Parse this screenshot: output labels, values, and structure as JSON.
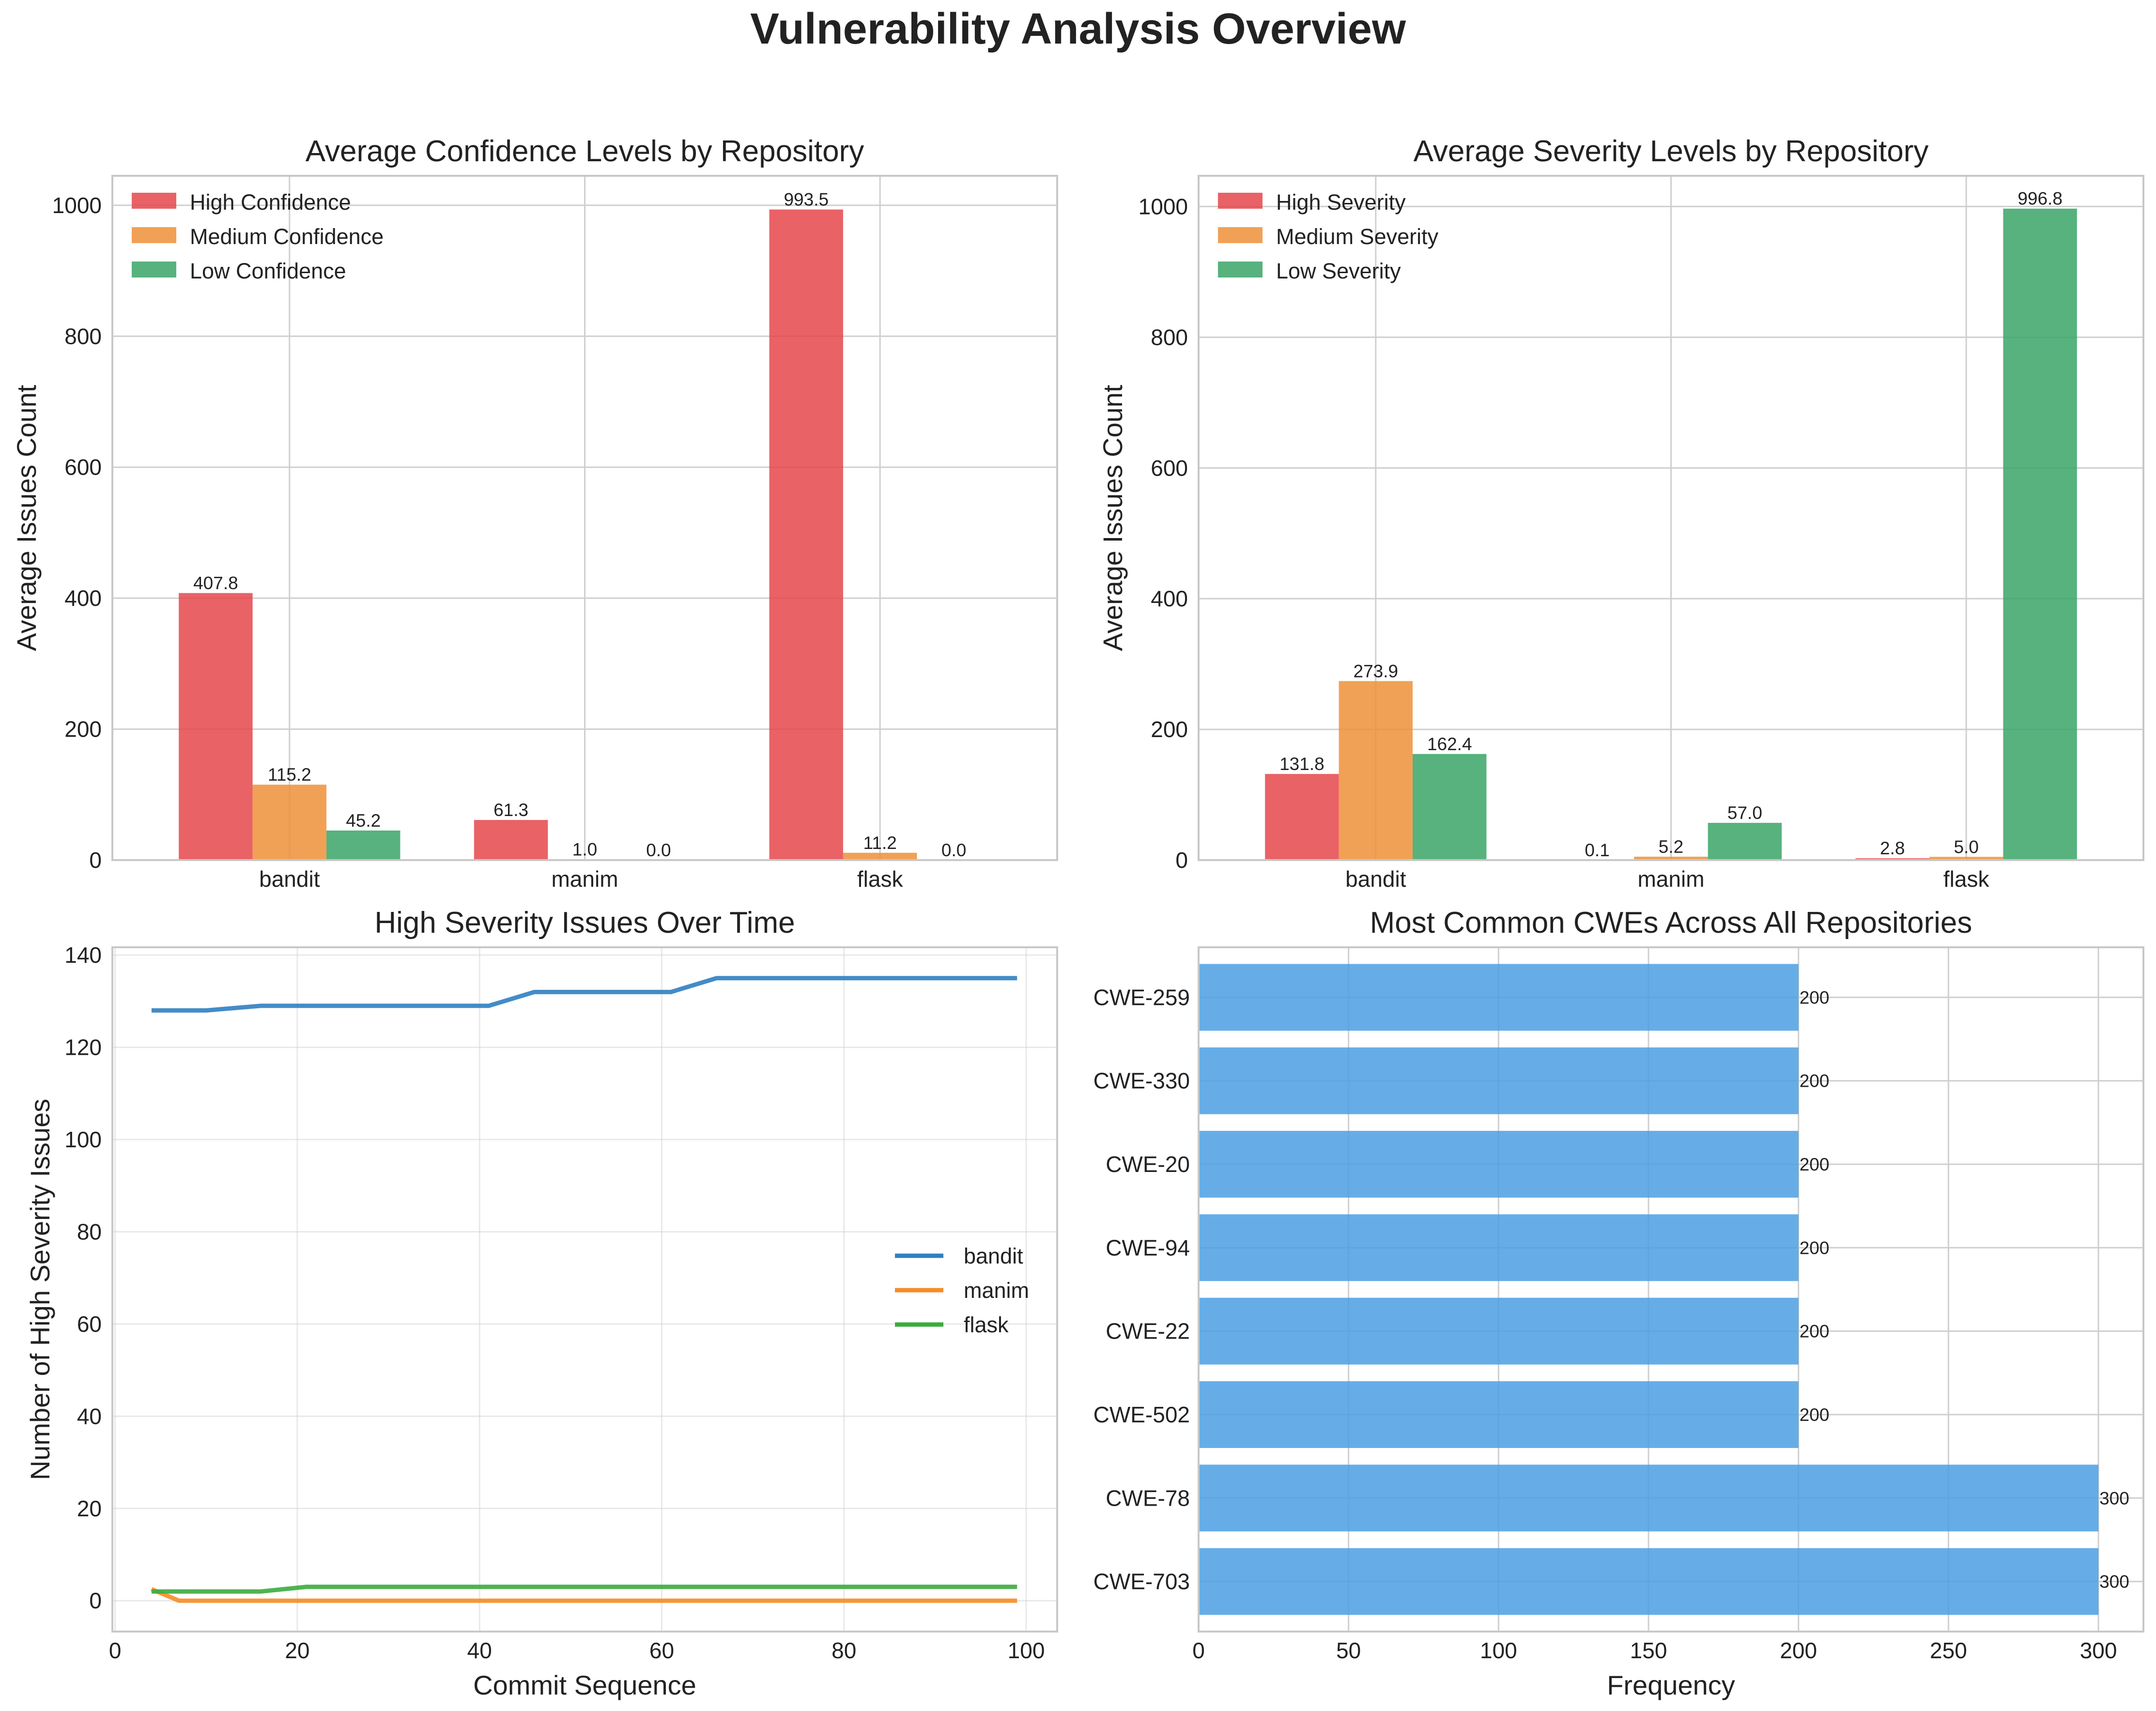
{
  "title": "Vulnerability Analysis Overview",
  "colors": {
    "high": "#e5474b",
    "medium": "#ee9138",
    "low": "#39a567",
    "line_bandit": "#2f7fc1",
    "line_manim": "#f58d27",
    "line_flask": "#3aac3d",
    "cwe_bar": "#4b9fe3"
  },
  "chart_data": [
    {
      "type": "bar",
      "title": "Average Confidence Levels by Repository",
      "xlabel": "",
      "ylabel": "Average Issues Count",
      "categories": [
        "bandit",
        "manim",
        "flask"
      ],
      "series": [
        {
          "name": "High Confidence",
          "values": [
            407.8,
            61.3,
            993.5
          ],
          "labels": [
            "407.8",
            "61.3",
            "993.5"
          ]
        },
        {
          "name": "Medium Confidence",
          "values": [
            115.2,
            1.0,
            11.2
          ],
          "labels": [
            "115.2",
            "1.0",
            "11.2"
          ]
        },
        {
          "name": "Low Confidence",
          "values": [
            45.2,
            0.0,
            0.0
          ],
          "labels": [
            "45.2",
            "0.0",
            "0.0"
          ]
        }
      ],
      "ylim": [
        0,
        1045
      ],
      "yticks": [
        0,
        200,
        400,
        600,
        800,
        1000
      ],
      "grid": true,
      "legend": "top-left"
    },
    {
      "type": "bar",
      "title": "Average Severity Levels by Repository",
      "xlabel": "",
      "ylabel": "Average Issues Count",
      "categories": [
        "bandit",
        "manim",
        "flask"
      ],
      "series": [
        {
          "name": "High Severity",
          "values": [
            131.8,
            0.1,
            2.8
          ],
          "labels": [
            "131.8",
            "0.1",
            "2.8"
          ]
        },
        {
          "name": "Medium Severity",
          "values": [
            273.9,
            5.2,
            5.0
          ],
          "labels": [
            "273.9",
            "5.2",
            "5.0"
          ]
        },
        {
          "name": "Low Severity",
          "values": [
            162.4,
            57.0,
            996.8
          ],
          "labels": [
            "162.4",
            "57.0",
            "996.8"
          ]
        }
      ],
      "ylim": [
        0,
        1047
      ],
      "yticks": [
        0,
        200,
        400,
        600,
        800,
        1000
      ],
      "grid": true,
      "legend": "top-left"
    },
    {
      "type": "line",
      "title": "High Severity Issues Over Time",
      "xlabel": "Commit Sequence",
      "ylabel": "Number of High Severity Issues",
      "xlim": [
        -0.3,
        103.4
      ],
      "ylim": [
        -6.7,
        141.7
      ],
      "xticks": [
        0,
        20,
        40,
        60,
        80,
        100
      ],
      "yticks": [
        0,
        20,
        40,
        60,
        80,
        100,
        120,
        140
      ],
      "grid": true,
      "legend": "center-right",
      "series": [
        {
          "name": "bandit",
          "x": [
            4,
            10,
            16,
            41,
            46,
            61,
            66,
            99
          ],
          "y": [
            128,
            128,
            129,
            129,
            132,
            132,
            135,
            135
          ]
        },
        {
          "name": "manim",
          "x": [
            4,
            7,
            99
          ],
          "y": [
            2.5,
            0,
            0
          ]
        },
        {
          "name": "flask",
          "x": [
            4,
            16,
            21,
            99
          ],
          "y": [
            2,
            2,
            3,
            3
          ]
        }
      ]
    },
    {
      "type": "bar",
      "orientation": "horizontal",
      "title": "Most Common CWEs Across All Repositories",
      "xlabel": "Frequency",
      "ylabel": "",
      "categories": [
        "CWE-259",
        "CWE-330",
        "CWE-20",
        "CWE-94",
        "CWE-22",
        "CWE-502",
        "CWE-78",
        "CWE-703"
      ],
      "values": [
        200,
        200,
        200,
        200,
        200,
        200,
        300,
        300
      ],
      "labels": [
        "200",
        "200",
        "200",
        "200",
        "200",
        "200",
        "300",
        "300"
      ],
      "xlim": [
        0,
        315
      ],
      "xticks": [
        0,
        50,
        100,
        150,
        200,
        250,
        300
      ],
      "grid": true
    }
  ]
}
